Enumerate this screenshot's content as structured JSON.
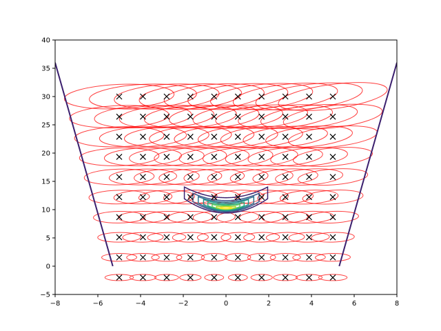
{
  "chart_data": {
    "type": "scatter",
    "title": "",
    "xlabel": "",
    "ylabel": "",
    "xlim": [
      -8,
      8
    ],
    "ylim": [
      -5,
      40
    ],
    "grid": false,
    "x_ticks": [
      -8,
      -6,
      -4,
      -2,
      0,
      2,
      4,
      6,
      8
    ],
    "y_ticks": [
      -5,
      0,
      5,
      10,
      15,
      20,
      25,
      30,
      35,
      40
    ],
    "x_tick_labels": [
      "−8",
      "−6",
      "−4",
      "−2",
      "0",
      "2",
      "4",
      "6",
      "8"
    ],
    "y_tick_labels": [
      "−5",
      "0",
      "5",
      "10",
      "15",
      "20",
      "25",
      "30",
      "35",
      "40"
    ],
    "grid_points": {
      "marker": "x",
      "color": "#000000",
      "x": [
        -5.0,
        -3.889,
        -2.778,
        -1.667,
        -0.556,
        0.556,
        1.667,
        2.778,
        3.889,
        5.0
      ],
      "y": [
        -2.0,
        1.556,
        5.111,
        8.667,
        12.222,
        15.778,
        19.333,
        22.889,
        26.444,
        30.0
      ]
    },
    "covariance_ellipses": {
      "color": "#ff0000",
      "alpha": 0.75,
      "description_of_shape": "one ellipse per grid point, growing and tilting with y"
    },
    "boundary_lines": [
      {
        "color": "#3b1f6e",
        "x": [
          -5.3,
          -8.0
        ],
        "y": [
          0.0,
          36.0
        ]
      },
      {
        "color": "#3b1f6e",
        "x": [
          5.3,
          8.0
        ],
        "y": [
          0.0,
          36.0
        ]
      }
    ],
    "density_contours": {
      "colormap": "viridis",
      "center": [
        0.0,
        10.0
      ],
      "levels": [
        {
          "color": "#3b1f6e",
          "x_half_width": 1.95,
          "top": 14.0,
          "bottom": 9.4
        },
        {
          "color": "#3a528b",
          "x_half_width": 1.55,
          "top": 12.9,
          "bottom": 9.6
        },
        {
          "color": "#2c728e",
          "x_half_width": 1.3,
          "top": 12.3,
          "bottom": 9.75
        },
        {
          "color": "#21918c",
          "x_half_width": 1.05,
          "top": 11.8,
          "bottom": 9.85
        },
        {
          "color": "#28ae80",
          "x_half_width": 0.85,
          "top": 11.3,
          "bottom": 9.95
        },
        {
          "color": "#5ec962",
          "x_half_width": 0.65,
          "top": 10.9,
          "bottom": 10.05
        },
        {
          "color": "#addc30",
          "x_half_width": 0.45,
          "top": 10.55,
          "bottom": 10.1
        },
        {
          "color": "#fde725",
          "x_half_width": 0.28,
          "top": 10.3,
          "bottom": 10.15
        }
      ]
    }
  }
}
